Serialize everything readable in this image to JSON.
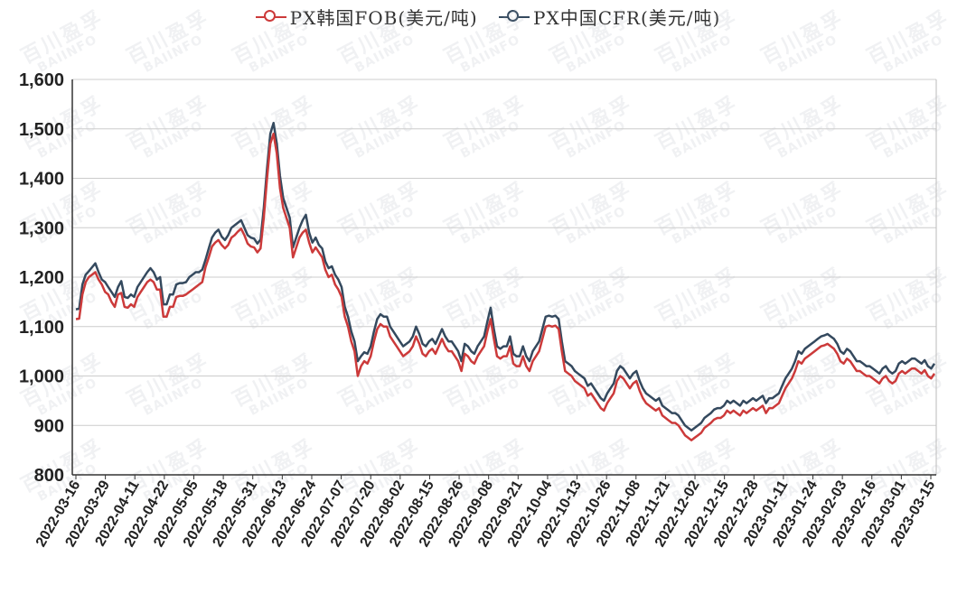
{
  "legend": [
    {
      "label": "PX韩国FOB(美元/吨)",
      "color": "#cc3a3a"
    },
    {
      "label": "PX中国CFR(美元/吨)",
      "color": "#34495e"
    }
  ],
  "watermark": {
    "cn": "百川盈孚",
    "en": "BAIINFO"
  },
  "chart_data": {
    "type": "line",
    "title": "",
    "xlabel": "",
    "ylabel": "",
    "ylim": [
      800,
      1600
    ],
    "yticks": [
      "800",
      "900",
      "1,000",
      "1,100",
      "1,200",
      "1,300",
      "1,400",
      "1,500",
      "1,600"
    ],
    "xticks": [
      "2022-03-16",
      "2022-03-29",
      "2022-04-11",
      "2022-04-22",
      "2022-05-05",
      "2022-05-18",
      "2022-05-31",
      "2022-06-13",
      "2022-06-24",
      "2022-07-07",
      "2022-07-20",
      "2022-08-02",
      "2022-08-15",
      "2022-08-26",
      "2022-09-08",
      "2022-09-21",
      "2022-10-04",
      "2022-10-13",
      "2022-10-26",
      "2022-11-08",
      "2022-11-21",
      "2022-12-02",
      "2022-12-15",
      "2022-12-28",
      "2023-01-11",
      "2023-01-24",
      "2023-02-03",
      "2023-02-16",
      "2023-03-01",
      "2023-03-15"
    ],
    "grid": true,
    "legend_position": "top",
    "series": [
      {
        "name": "PX韩国FOB(美元/吨)",
        "color": "#cc3a3a",
        "values": [
          1115,
          1116,
          1165,
          1190,
          1200,
          1205,
          1210,
          1195,
          1185,
          1170,
          1165,
          1150,
          1140,
          1165,
          1168,
          1140,
          1138,
          1145,
          1140,
          1160,
          1170,
          1180,
          1190,
          1195,
          1190,
          1175,
          1175,
          1120,
          1120,
          1140,
          1140,
          1160,
          1162,
          1162,
          1165,
          1170,
          1175,
          1180,
          1185,
          1190,
          1220,
          1240,
          1262,
          1270,
          1275,
          1265,
          1258,
          1265,
          1280,
          1285,
          1292,
          1298,
          1285,
          1268,
          1262,
          1260,
          1250,
          1258,
          1320,
          1400,
          1470,
          1490,
          1450,
          1380,
          1340,
          1320,
          1300,
          1240,
          1260,
          1280,
          1290,
          1296,
          1270,
          1250,
          1260,
          1250,
          1240,
          1215,
          1200,
          1205,
          1185,
          1175,
          1160,
          1120,
          1100,
          1070,
          1050,
          1000,
          1020,
          1030,
          1025,
          1040,
          1070,
          1095,
          1105,
          1100,
          1100,
          1080,
          1070,
          1060,
          1050,
          1040,
          1045,
          1050,
          1060,
          1080,
          1065,
          1045,
          1040,
          1050,
          1055,
          1045,
          1060,
          1075,
          1060,
          1050,
          1050,
          1040,
          1030,
          1010,
          1045,
          1040,
          1030,
          1025,
          1040,
          1050,
          1060,
          1090,
          1115,
          1075,
          1040,
          1035,
          1040,
          1040,
          1060,
          1025,
          1020,
          1020,
          1040,
          1020,
          1010,
          1030,
          1040,
          1050,
          1075,
          1100,
          1102,
          1100,
          1102,
          1095,
          1050,
          1010,
          1005,
          1000,
          990,
          985,
          980,
          975,
          960,
          965,
          955,
          945,
          935,
          930,
          945,
          955,
          965,
          990,
          1000,
          995,
          985,
          975,
          985,
          990,
          970,
          955,
          945,
          940,
          935,
          930,
          935,
          920,
          915,
          910,
          905,
          905,
          900,
          890,
          880,
          875,
          870,
          875,
          880,
          885,
          895,
          900,
          905,
          912,
          915,
          915,
          920,
          930,
          925,
          930,
          925,
          920,
          930,
          925,
          930,
          935,
          930,
          935,
          940,
          925,
          935,
          935,
          940,
          945,
          960,
          975,
          985,
          995,
          1010,
          1030,
          1025,
          1035,
          1040,
          1045,
          1050,
          1055,
          1060,
          1062,
          1065,
          1060,
          1055,
          1045,
          1030,
          1025,
          1035,
          1030,
          1020,
          1010,
          1010,
          1005,
          1000,
          1000,
          995,
          990,
          985,
          995,
          1000,
          990,
          985,
          990,
          1005,
          1010,
          1005,
          1010,
          1015,
          1015,
          1010,
          1005,
          1012,
          1000,
          995,
          1005
        ]
      },
      {
        "name": "PX中国CFR(美元/吨)",
        "color": "#34495e",
        "values": [
          1135,
          1136,
          1185,
          1205,
          1212,
          1220,
          1228,
          1210,
          1195,
          1190,
          1180,
          1170,
          1160,
          1180,
          1192,
          1160,
          1158,
          1165,
          1160,
          1180,
          1190,
          1200,
          1210,
          1218,
          1210,
          1195,
          1200,
          1145,
          1145,
          1165,
          1165,
          1185,
          1188,
          1188,
          1190,
          1200,
          1205,
          1210,
          1210,
          1215,
          1235,
          1258,
          1280,
          1290,
          1296,
          1282,
          1275,
          1285,
          1300,
          1305,
          1310,
          1315,
          1300,
          1285,
          1280,
          1278,
          1268,
          1276,
          1340,
          1420,
          1490,
          1512,
          1470,
          1405,
          1360,
          1340,
          1320,
          1260,
          1280,
          1300,
          1315,
          1326,
          1290,
          1270,
          1280,
          1265,
          1258,
          1232,
          1218,
          1222,
          1205,
          1195,
          1180,
          1140,
          1120,
          1090,
          1070,
          1030,
          1040,
          1048,
          1045,
          1060,
          1090,
          1115,
          1125,
          1120,
          1120,
          1100,
          1090,
          1080,
          1070,
          1060,
          1065,
          1070,
          1080,
          1100,
          1085,
          1065,
          1060,
          1070,
          1075,
          1065,
          1080,
          1095,
          1080,
          1070,
          1070,
          1060,
          1050,
          1030,
          1065,
          1060,
          1050,
          1045,
          1060,
          1070,
          1080,
          1110,
          1138,
          1095,
          1060,
          1055,
          1060,
          1060,
          1080,
          1045,
          1040,
          1040,
          1060,
          1040,
          1030,
          1050,
          1060,
          1070,
          1095,
          1120,
          1122,
          1120,
          1122,
          1115,
          1070,
          1030,
          1025,
          1020,
          1010,
          1005,
          1000,
          995,
          980,
          985,
          975,
          965,
          955,
          950,
          965,
          975,
          985,
          1010,
          1020,
          1015,
          1005,
          995,
          1005,
          1010,
          990,
          975,
          965,
          960,
          955,
          950,
          955,
          940,
          935,
          930,
          925,
          925,
          920,
          910,
          900,
          895,
          890,
          895,
          900,
          905,
          915,
          920,
          925,
          932,
          935,
          935,
          940,
          950,
          945,
          950,
          945,
          940,
          950,
          945,
          950,
          955,
          950,
          955,
          960,
          945,
          955,
          955,
          960,
          965,
          980,
          995,
          1005,
          1015,
          1030,
          1050,
          1045,
          1055,
          1060,
          1065,
          1070,
          1075,
          1080,
          1082,
          1085,
          1080,
          1075,
          1065,
          1050,
          1045,
          1055,
          1050,
          1040,
          1030,
          1030,
          1025,
          1020,
          1020,
          1015,
          1010,
          1005,
          1015,
          1020,
          1010,
          1005,
          1010,
          1025,
          1030,
          1025,
          1030,
          1035,
          1035,
          1030,
          1025,
          1032,
          1020,
          1015,
          1025
        ]
      }
    ]
  }
}
